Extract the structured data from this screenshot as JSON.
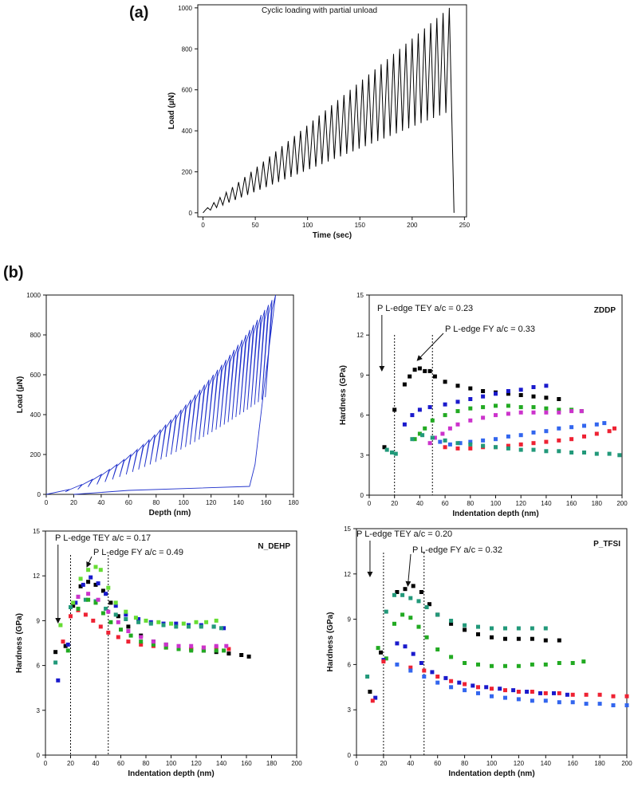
{
  "figure": {
    "label_a": "(a)",
    "label_b": "(b)"
  },
  "chart_data": [
    {
      "id": "a",
      "type": "line",
      "title": "Cyclic loading with partial unload",
      "xlabel": "Time (sec)",
      "ylabel": "Load (µN)",
      "xlim": [
        -5,
        252
      ],
      "ylim": [
        -20,
        1015
      ],
      "xticks": [
        0,
        50,
        100,
        150,
        200,
        250
      ],
      "yticks": [
        0,
        200,
        400,
        600,
        800,
        1000
      ],
      "cycles": 40,
      "peak_load_start": 25,
      "peak_load_end": 1000,
      "unload_fraction": 0.5,
      "end_time": 237,
      "final_unload_time": 240,
      "color": "#000000"
    },
    {
      "id": "b1",
      "type": "line",
      "title": "",
      "xlabel": "Depth (nm)",
      "ylabel": "Load (µN)",
      "xlim": [
        0,
        180
      ],
      "ylim": [
        0,
        1000
      ],
      "xticks": [
        0,
        20,
        40,
        60,
        80,
        100,
        120,
        140,
        160,
        180
      ],
      "yticks": [
        0,
        200,
        400,
        600,
        800,
        1000
      ],
      "cycles": 40,
      "max_depth": 167,
      "max_load": 1000,
      "residual_depth": 148,
      "color": "#2233cc"
    },
    {
      "id": "zddp",
      "type": "scatter",
      "title": "ZDDP",
      "xlabel": "Indentation depth (nm)",
      "ylabel": "Hardness (GPa)",
      "xlim": [
        0,
        200
      ],
      "ylim": [
        0,
        15
      ],
      "xticks": [
        0,
        20,
        40,
        60,
        80,
        100,
        120,
        140,
        160,
        180,
        200
      ],
      "yticks": [
        0,
        3,
        6,
        9,
        12,
        15
      ],
      "annotations": [
        "P L-edge TEY a/c = 0.23",
        "P L-edge FY a/c = 0.33"
      ],
      "vlines": [
        20,
        50
      ],
      "arrow_x": 10,
      "series": [
        {
          "name": "black",
          "color": "#000000",
          "x": [
            12,
            20,
            28,
            32,
            36,
            40,
            44,
            48,
            52,
            60,
            70,
            80,
            90,
            100,
            110,
            120,
            130,
            140,
            150
          ],
          "y": [
            3.6,
            6.4,
            8.3,
            8.9,
            9.4,
            9.5,
            9.3,
            9.3,
            8.9,
            8.5,
            8.2,
            8.0,
            7.8,
            7.7,
            7.6,
            7.5,
            7.4,
            7.3,
            7.2
          ]
        },
        {
          "name": "blue",
          "color": "#1a1acc",
          "x": [
            28,
            34,
            40,
            48,
            60,
            70,
            80,
            90,
            100,
            110,
            120,
            130,
            140
          ],
          "y": [
            5.3,
            6.0,
            6.4,
            6.6,
            6.8,
            7.0,
            7.2,
            7.4,
            7.6,
            7.8,
            7.9,
            8.1,
            8.2
          ]
        },
        {
          "name": "green",
          "color": "#22aa22",
          "x": [
            36,
            40,
            44,
            50,
            60,
            70,
            80,
            90,
            100,
            110,
            120,
            130,
            140,
            150,
            160,
            168
          ],
          "y": [
            4.2,
            4.6,
            5.0,
            5.6,
            6.0,
            6.3,
            6.5,
            6.6,
            6.7,
            6.7,
            6.6,
            6.6,
            6.5,
            6.4,
            6.4,
            6.3
          ]
        },
        {
          "name": "magenta",
          "color": "#cc33cc",
          "x": [
            48,
            52,
            58,
            64,
            70,
            80,
            90,
            100,
            110,
            120,
            130,
            140,
            150,
            160,
            168
          ],
          "y": [
            3.9,
            4.3,
            4.6,
            5.0,
            5.3,
            5.6,
            5.8,
            6.0,
            6.1,
            6.2,
            6.2,
            6.2,
            6.2,
            6.3,
            6.3
          ]
        },
        {
          "name": "royal",
          "color": "#3366ee",
          "x": [
            50,
            56,
            64,
            72,
            80,
            90,
            100,
            110,
            120,
            130,
            140,
            150,
            160,
            170,
            180,
            186
          ],
          "y": [
            4.3,
            4.0,
            3.8,
            3.9,
            4.0,
            4.1,
            4.2,
            4.4,
            4.5,
            4.7,
            4.8,
            5.0,
            5.1,
            5.2,
            5.3,
            5.4
          ]
        },
        {
          "name": "red",
          "color": "#ee2233",
          "x": [
            60,
            70,
            80,
            90,
            100,
            110,
            120,
            130,
            140,
            150,
            160,
            170,
            180,
            190,
            194
          ],
          "y": [
            3.6,
            3.5,
            3.5,
            3.6,
            3.6,
            3.7,
            3.8,
            3.9,
            4.0,
            4.1,
            4.2,
            4.4,
            4.6,
            4.8,
            5.0
          ]
        },
        {
          "name": "teal",
          "color": "#22997a",
          "x": [
            14,
            18,
            21,
            34,
            42,
            50,
            60,
            70,
            80,
            90,
            100,
            110,
            120,
            130,
            140,
            150,
            160,
            170,
            180,
            190,
            198
          ],
          "y": [
            3.4,
            3.2,
            3.1,
            4.2,
            4.5,
            4.3,
            4.1,
            3.9,
            3.8,
            3.7,
            3.6,
            3.5,
            3.4,
            3.4,
            3.3,
            3.3,
            3.2,
            3.2,
            3.1,
            3.1,
            3.0
          ]
        }
      ]
    },
    {
      "id": "ndehp",
      "type": "scatter",
      "title": "N_DEHP",
      "xlabel": "Indentation depth (nm)",
      "ylabel": "Hardness (GPa)",
      "xlim": [
        0,
        200
      ],
      "ylim": [
        0,
        15
      ],
      "xticks": [
        0,
        20,
        40,
        60,
        80,
        100,
        120,
        140,
        160,
        180,
        200
      ],
      "yticks": [
        0,
        3,
        6,
        9,
        12,
        15
      ],
      "annotations": [
        "P L-edge TEY a/c = 0.17",
        "P L-edge FY a/c = 0.49"
      ],
      "vlines": [
        20,
        50
      ],
      "arrow_x": 10,
      "series": [
        {
          "name": "black",
          "color": "#000000",
          "x": [
            8,
            16,
            22,
            28,
            34,
            40,
            46,
            52,
            58,
            66,
            76,
            86,
            96,
            106,
            116,
            126,
            136,
            146,
            156,
            162
          ],
          "y": [
            6.9,
            7.3,
            10.0,
            11.3,
            11.6,
            11.4,
            11.0,
            10.2,
            9.3,
            8.6,
            8.0,
            7.6,
            7.4,
            7.2,
            7.1,
            7.0,
            6.9,
            6.8,
            6.7,
            6.6
          ]
        },
        {
          "name": "blue",
          "color": "#1a1acc",
          "x": [
            10,
            18,
            24,
            30,
            36,
            42,
            48,
            56,
            64,
            74,
            84,
            94,
            104,
            114,
            124,
            134,
            142
          ],
          "y": [
            5.0,
            7.4,
            10.2,
            11.4,
            11.9,
            11.5,
            10.8,
            10.0,
            9.4,
            9.1,
            8.9,
            8.8,
            8.8,
            8.7,
            8.7,
            8.6,
            8.5
          ]
        },
        {
          "name": "lime",
          "color": "#66dd33",
          "x": [
            12,
            22,
            28,
            34,
            40,
            44,
            50,
            56,
            64,
            72,
            80,
            90,
            100,
            110,
            120,
            128,
            136
          ],
          "y": [
            8.7,
            10.2,
            11.8,
            12.4,
            12.6,
            12.4,
            11.2,
            10.2,
            9.6,
            9.2,
            9.0,
            8.9,
            8.8,
            8.8,
            8.9,
            8.9,
            9.0
          ]
        },
        {
          "name": "teal",
          "color": "#22997a",
          "x": [
            8,
            20,
            26,
            32,
            40,
            48,
            56,
            64,
            74,
            84,
            94,
            104,
            114,
            124,
            134,
            140
          ],
          "y": [
            6.2,
            9.9,
            10.6,
            10.4,
            10.3,
            9.8,
            9.4,
            9.1,
            8.9,
            8.8,
            8.7,
            8.6,
            8.6,
            8.6,
            8.6,
            8.5
          ]
        },
        {
          "name": "red",
          "color": "#ee2233",
          "x": [
            14,
            20,
            26,
            32,
            38,
            44,
            50,
            58,
            66,
            76,
            86,
            96,
            106,
            116,
            126,
            136,
            146
          ],
          "y": [
            7.6,
            9.3,
            9.7,
            9.4,
            9.0,
            8.6,
            8.2,
            7.9,
            7.6,
            7.4,
            7.3,
            7.2,
            7.2,
            7.1,
            7.2,
            7.2,
            7.1
          ]
        },
        {
          "name": "green",
          "color": "#22aa22",
          "x": [
            18,
            26,
            34,
            40,
            46,
            52,
            60,
            68,
            76,
            86,
            96,
            106,
            116,
            126,
            136,
            142
          ],
          "y": [
            7.0,
            9.8,
            10.4,
            10.2,
            9.5,
            8.9,
            8.4,
            8.0,
            7.6,
            7.4,
            7.2,
            7.1,
            7.0,
            7.0,
            7.0,
            7.0
          ]
        },
        {
          "name": "magenta",
          "color": "#cc33cc",
          "x": [
            26,
            34,
            42,
            50,
            58,
            66,
            76,
            86,
            96,
            106,
            116,
            126,
            136,
            144
          ],
          "y": [
            10.6,
            10.8,
            10.4,
            9.6,
            8.9,
            8.3,
            7.9,
            7.6,
            7.4,
            7.3,
            7.3,
            7.2,
            7.3,
            7.3
          ]
        }
      ]
    },
    {
      "id": "ptfsi",
      "type": "scatter",
      "title": "P_TFSI",
      "xlabel": "Indentation depth (nm)",
      "ylabel": "Hardness (GPa)",
      "xlim": [
        0,
        200
      ],
      "ylim": [
        0,
        15
      ],
      "xticks": [
        0,
        20,
        40,
        60,
        80,
        100,
        120,
        140,
        160,
        180,
        200
      ],
      "yticks": [
        0,
        3,
        6,
        9,
        12,
        15
      ],
      "annotations": [
        "P L-edge TEY a/c = 0.20",
        "P L-edge FY a/c = 0.32"
      ],
      "vlines": [
        20,
        50
      ],
      "arrow_x": 10,
      "series": [
        {
          "name": "black",
          "color": "#000000",
          "x": [
            10,
            18,
            30,
            36,
            42,
            48,
            54,
            60,
            70,
            80,
            90,
            100,
            110,
            120,
            130,
            140,
            150
          ],
          "y": [
            4.2,
            6.8,
            10.8,
            11.0,
            11.2,
            10.8,
            10.0,
            9.3,
            8.7,
            8.3,
            8.0,
            7.8,
            7.7,
            7.7,
            7.7,
            7.6,
            7.6
          ]
        },
        {
          "name": "teal",
          "color": "#22997a",
          "x": [
            8,
            22,
            28,
            34,
            40,
            46,
            52,
            60,
            70,
            80,
            90,
            100,
            110,
            120,
            130,
            140
          ],
          "y": [
            5.2,
            9.5,
            10.6,
            10.6,
            10.4,
            10.2,
            9.8,
            9.3,
            8.9,
            8.6,
            8.5,
            8.4,
            8.4,
            8.4,
            8.4,
            8.4
          ]
        },
        {
          "name": "green",
          "color": "#22aa22",
          "x": [
            16,
            22,
            28,
            34,
            40,
            46,
            52,
            60,
            70,
            80,
            90,
            100,
            110,
            120,
            130,
            140,
            150,
            160,
            168
          ],
          "y": [
            7.1,
            6.4,
            8.7,
            9.3,
            9.1,
            8.5,
            7.8,
            7.0,
            6.5,
            6.1,
            6.0,
            5.9,
            5.9,
            5.9,
            6.0,
            6.0,
            6.1,
            6.1,
            6.2
          ]
        },
        {
          "name": "navy",
          "color": "#1a1acc",
          "x": [
            14,
            20,
            30,
            36,
            42,
            48,
            56,
            66,
            76,
            86,
            96,
            106,
            116,
            126,
            136,
            146,
            156
          ],
          "y": [
            3.8,
            6.3,
            7.4,
            7.2,
            6.7,
            6.1,
            5.5,
            5.1,
            4.8,
            4.6,
            4.5,
            4.4,
            4.3,
            4.2,
            4.1,
            4.1,
            4.0
          ]
        },
        {
          "name": "red",
          "color": "#ee2233",
          "x": [
            12,
            20,
            40,
            50,
            60,
            70,
            80,
            90,
            100,
            110,
            120,
            130,
            140,
            150,
            160,
            170,
            180,
            190,
            200
          ],
          "y": [
            3.6,
            6.2,
            5.8,
            5.6,
            5.2,
            4.9,
            4.7,
            4.5,
            4.4,
            4.3,
            4.2,
            4.2,
            4.1,
            4.1,
            4.0,
            4.0,
            4.0,
            3.9,
            3.9
          ]
        },
        {
          "name": "royal",
          "color": "#3366ee",
          "x": [
            30,
            40,
            50,
            60,
            70,
            80,
            90,
            100,
            110,
            120,
            130,
            140,
            150,
            160,
            170,
            180,
            190,
            200
          ],
          "y": [
            6.0,
            5.6,
            5.2,
            4.8,
            4.5,
            4.3,
            4.1,
            3.9,
            3.8,
            3.7,
            3.6,
            3.6,
            3.5,
            3.5,
            3.4,
            3.4,
            3.3,
            3.3
          ]
        }
      ]
    }
  ]
}
